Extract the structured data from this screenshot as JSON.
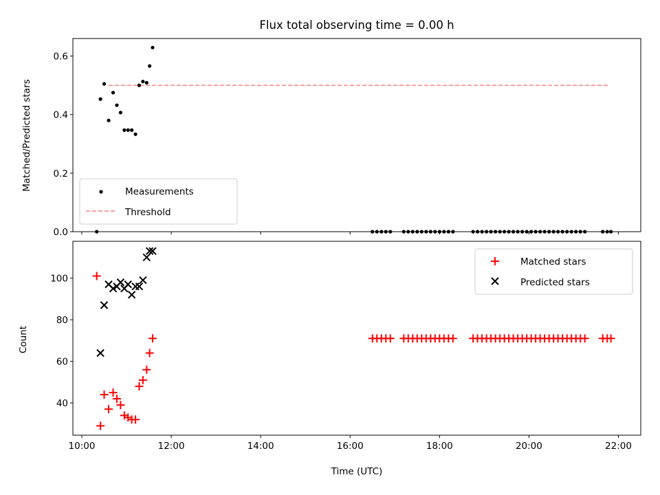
{
  "figure": {
    "title": "Flux total observing time = 0.00 h",
    "xlabel": "Time (UTC)"
  },
  "colors": {
    "measurements": "#000000",
    "threshold": "#ff7f7f",
    "matched": "#ff0000",
    "predicted": "#000000"
  },
  "chart_data": [
    {
      "type": "scatter",
      "ylabel": "Matched/Predicted stars",
      "xlim": [
        "09:48",
        "22:30"
      ],
      "ylim": [
        0,
        0.66
      ],
      "yticks": [
        0.0,
        0.2,
        0.4,
        0.6
      ],
      "ytick_labels": [
        "0.0",
        "0.2",
        "0.4",
        "0.6"
      ],
      "xtick_labels": [],
      "legend_position": "lower-left",
      "threshold": {
        "name": "Threshold",
        "y": 0.5,
        "x_start": "10:36",
        "x_end": "21:48"
      },
      "series": [
        {
          "name": "Measurements",
          "marker": "dot",
          "points": [
            [
              "10:20",
              0.0
            ],
            [
              "10:25",
              0.453
            ],
            [
              "10:30",
              0.505
            ],
            [
              "10:36",
              0.38
            ],
            [
              "10:42",
              0.475
            ],
            [
              "10:47",
              0.432
            ],
            [
              "10:52",
              0.407
            ],
            [
              "10:57",
              0.347
            ],
            [
              "11:02",
              0.347
            ],
            [
              "11:07",
              0.347
            ],
            [
              "11:12",
              0.333
            ],
            [
              "11:17",
              0.5
            ],
            [
              "11:22",
              0.513
            ],
            [
              "11:27",
              0.509
            ],
            [
              "11:31",
              0.566
            ],
            [
              "11:35",
              0.629
            ],
            [
              "16:30",
              0.0
            ],
            [
              "16:36",
              0.0
            ],
            [
              "16:42",
              0.0
            ],
            [
              "16:48",
              0.0
            ],
            [
              "16:54",
              0.0
            ],
            [
              "17:12",
              0.0
            ],
            [
              "17:18",
              0.0
            ],
            [
              "17:24",
              0.0
            ],
            [
              "17:30",
              0.0
            ],
            [
              "17:36",
              0.0
            ],
            [
              "17:42",
              0.0
            ],
            [
              "17:48",
              0.0
            ],
            [
              "17:54",
              0.0
            ],
            [
              "18:00",
              0.0
            ],
            [
              "18:06",
              0.0
            ],
            [
              "18:12",
              0.0
            ],
            [
              "18:18",
              0.0
            ],
            [
              "18:45",
              0.0
            ],
            [
              "18:51",
              0.0
            ],
            [
              "18:57",
              0.0
            ],
            [
              "19:03",
              0.0
            ],
            [
              "19:09",
              0.0
            ],
            [
              "19:15",
              0.0
            ],
            [
              "19:21",
              0.0
            ],
            [
              "19:27",
              0.0
            ],
            [
              "19:33",
              0.0
            ],
            [
              "19:39",
              0.0
            ],
            [
              "19:45",
              0.0
            ],
            [
              "19:51",
              0.0
            ],
            [
              "19:57",
              0.0
            ],
            [
              "20:03",
              0.0
            ],
            [
              "20:09",
              0.0
            ],
            [
              "20:15",
              0.0
            ],
            [
              "20:21",
              0.0
            ],
            [
              "20:27",
              0.0
            ],
            [
              "20:33",
              0.0
            ],
            [
              "20:39",
              0.0
            ],
            [
              "20:45",
              0.0
            ],
            [
              "20:51",
              0.0
            ],
            [
              "20:57",
              0.0
            ],
            [
              "21:03",
              0.0
            ],
            [
              "21:09",
              0.0
            ],
            [
              "21:15",
              0.0
            ],
            [
              "21:39",
              0.0
            ],
            [
              "21:45",
              0.0
            ],
            [
              "21:50",
              0.0
            ]
          ]
        }
      ]
    },
    {
      "type": "scatter",
      "ylabel": "Count",
      "xlim": [
        "09:48",
        "22:30"
      ],
      "ylim": [
        24.5,
        117.7
      ],
      "yticks": [
        40,
        60,
        80,
        100
      ],
      "ytick_labels": [
        "40",
        "60",
        "80",
        "100"
      ],
      "xticks": [
        "10:00",
        "12:00",
        "14:00",
        "16:00",
        "18:00",
        "20:00",
        "22:00"
      ],
      "xtick_labels": [
        "10:00",
        "12:00",
        "14:00",
        "16:00",
        "18:00",
        "20:00",
        "22:00"
      ],
      "legend_position": "upper-right",
      "series": [
        {
          "name": "Matched stars",
          "marker": "plus",
          "points": [
            [
              "10:20",
              101
            ],
            [
              "10:25",
              29
            ],
            [
              "10:30",
              44
            ],
            [
              "10:36",
              37
            ],
            [
              "10:42",
              45
            ],
            [
              "10:47",
              42
            ],
            [
              "10:52",
              39
            ],
            [
              "10:57",
              34
            ],
            [
              "11:02",
              33
            ],
            [
              "11:07",
              32
            ],
            [
              "11:12",
              32
            ],
            [
              "11:17",
              48
            ],
            [
              "11:22",
              51
            ],
            [
              "11:27",
              56
            ],
            [
              "11:31",
              64
            ],
            [
              "11:35",
              71
            ],
            [
              "16:30",
              71
            ],
            [
              "16:36",
              71
            ],
            [
              "16:42",
              71
            ],
            [
              "16:48",
              71
            ],
            [
              "16:54",
              71
            ],
            [
              "17:12",
              71
            ],
            [
              "17:18",
              71
            ],
            [
              "17:24",
              71
            ],
            [
              "17:30",
              71
            ],
            [
              "17:36",
              71
            ],
            [
              "17:42",
              71
            ],
            [
              "17:48",
              71
            ],
            [
              "17:54",
              71
            ],
            [
              "18:00",
              71
            ],
            [
              "18:06",
              71
            ],
            [
              "18:12",
              71
            ],
            [
              "18:18",
              71
            ],
            [
              "18:45",
              71
            ],
            [
              "18:51",
              71
            ],
            [
              "18:57",
              71
            ],
            [
              "19:03",
              71
            ],
            [
              "19:09",
              71
            ],
            [
              "19:15",
              71
            ],
            [
              "19:21",
              71
            ],
            [
              "19:27",
              71
            ],
            [
              "19:33",
              71
            ],
            [
              "19:39",
              71
            ],
            [
              "19:45",
              71
            ],
            [
              "19:51",
              71
            ],
            [
              "19:57",
              71
            ],
            [
              "20:03",
              71
            ],
            [
              "20:09",
              71
            ],
            [
              "20:15",
              71
            ],
            [
              "20:21",
              71
            ],
            [
              "20:27",
              71
            ],
            [
              "20:33",
              71
            ],
            [
              "20:39",
              71
            ],
            [
              "20:45",
              71
            ],
            [
              "20:51",
              71
            ],
            [
              "20:57",
              71
            ],
            [
              "21:03",
              71
            ],
            [
              "21:09",
              71
            ],
            [
              "21:15",
              71
            ],
            [
              "21:39",
              71
            ],
            [
              "21:45",
              71
            ],
            [
              "21:50",
              71
            ]
          ]
        },
        {
          "name": "Predicted stars",
          "marker": "x",
          "points": [
            [
              "10:25",
              64
            ],
            [
              "10:30",
              87
            ],
            [
              "10:36",
              97
            ],
            [
              "10:42",
              95
            ],
            [
              "10:47",
              96
            ],
            [
              "10:52",
              98
            ],
            [
              "10:57",
              95
            ],
            [
              "11:02",
              97
            ],
            [
              "11:07",
              92
            ],
            [
              "11:12",
              96
            ],
            [
              "11:17",
              96
            ],
            [
              "11:22",
              99
            ],
            [
              "11:27",
              110
            ],
            [
              "11:31",
              113
            ],
            [
              "11:35",
              113
            ]
          ]
        }
      ]
    }
  ]
}
